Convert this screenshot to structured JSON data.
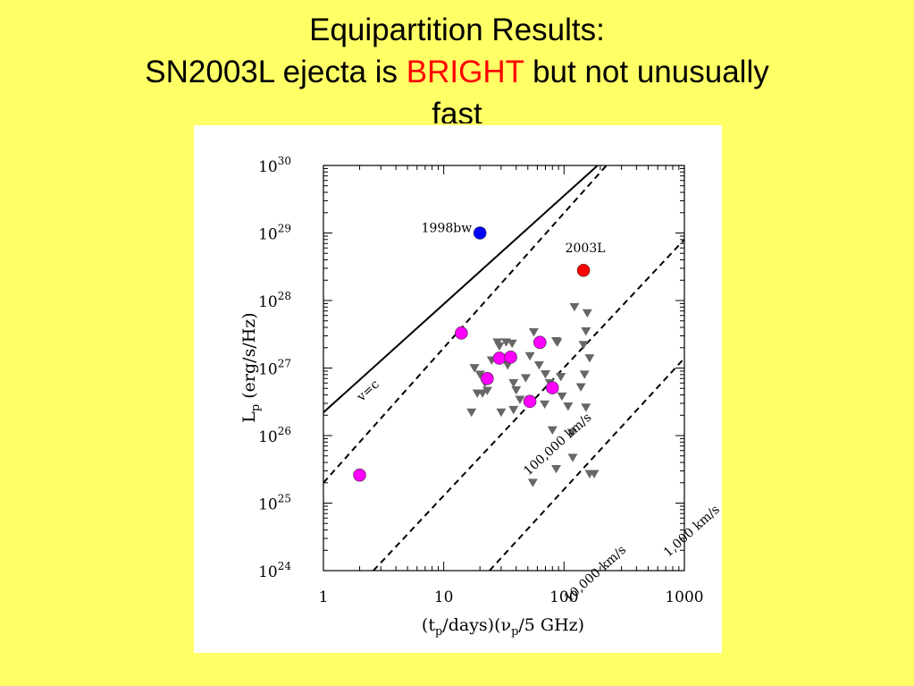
{
  "slide": {
    "title_line1": "Equipartition Results:",
    "title_line2_pre": "SN2003L ejecta is ",
    "title_line2_em": "BRIGHT",
    "title_line2_post": " but not unusually",
    "title_line3": "fast",
    "background": "#ffff66",
    "emphasis_color": "#ff0000"
  },
  "chart_data": {
    "type": "scatter",
    "x_scale": "log",
    "y_scale": "log",
    "xlim": [
      1,
      1000
    ],
    "ylim": [
      1e+24,
      1e+30
    ],
    "xlabel": {
      "main": "(t",
      "sub": "p",
      "mid": "/days)(ν",
      "sub2": "p",
      "end": "/5 GHz)"
    },
    "ylabel": {
      "main": "L",
      "sub": "p",
      "rest": "  (erg/s/Hz)"
    },
    "x_ticks": [
      {
        "value": 1,
        "label": "1"
      },
      {
        "value": 10,
        "label": "10"
      },
      {
        "value": 100,
        "label": "100"
      },
      {
        "value": 1000,
        "label": "1000"
      }
    ],
    "y_ticks": [
      {
        "exp": 24,
        "base": "10",
        "sup": "24"
      },
      {
        "exp": 25,
        "base": "10",
        "sup": "25"
      },
      {
        "exp": 26,
        "base": "10",
        "sup": "26"
      },
      {
        "exp": 27,
        "base": "10",
        "sup": "27"
      },
      {
        "exp": 28,
        "base": "10",
        "sup": "28"
      },
      {
        "exp": 29,
        "base": "10",
        "sup": "29"
      },
      {
        "exp": 30,
        "base": "10",
        "sup": "30"
      }
    ],
    "lines": [
      {
        "label": "v=c",
        "style": "solid",
        "points": [
          [
            1,
            2.2e+26
          ],
          [
            190,
            1e+30
          ]
        ]
      },
      {
        "label": "100,000 km/s",
        "style": "dashed",
        "points": [
          [
            1,
            2e+25
          ],
          [
            225,
            1e+30
          ]
        ]
      },
      {
        "label": "10,000 km/s",
        "style": "dashed",
        "points": [
          [
            2.6,
            1e+24
          ],
          [
            1000,
            8e+28
          ]
        ]
      },
      {
        "label": "1,000 km/s",
        "style": "dashed",
        "points": [
          [
            24,
            1e+24
          ],
          [
            1000,
            1.4e+27
          ]
        ]
      }
    ],
    "labeled_points": [
      {
        "label": "1998bw",
        "x": 20,
        "y": 1e+29,
        "color": "#0000ff"
      },
      {
        "label": "2003L",
        "x": 145,
        "y": 2.8e+28,
        "color": "#ff0000"
      }
    ],
    "magenta_points": {
      "color": "#ff00ff",
      "points": [
        [
          2,
          2.6e+25
        ],
        [
          14,
          3.3e+27
        ],
        [
          23,
          7e+26
        ],
        [
          29,
          1.4e+27
        ],
        [
          36,
          1.45e+27
        ],
        [
          52,
          3.2e+26
        ],
        [
          63,
          2.4e+27
        ],
        [
          80,
          5.1e+26
        ]
      ]
    },
    "upper_limits": {
      "color": "#666666",
      "points": [
        [
          18,
          1e+27
        ],
        [
          20,
          8e+26
        ],
        [
          22,
          6e+26
        ],
        [
          19,
          4.2e+26
        ],
        [
          21,
          4.2e+26
        ],
        [
          23,
          4.6e+26
        ],
        [
          17,
          2.2e+26
        ],
        [
          28,
          2.4e+27
        ],
        [
          33,
          2.4e+27
        ],
        [
          29,
          2.1e+27
        ],
        [
          25,
          1.3e+27
        ],
        [
          34,
          1.1e+27
        ],
        [
          37,
          2.3e+27
        ],
        [
          38,
          6e+26
        ],
        [
          30,
          2.2e+26
        ],
        [
          38,
          2.4e+26
        ],
        [
          43,
          3.4e+26
        ],
        [
          40,
          4.7e+26
        ],
        [
          48,
          7.1e+26
        ],
        [
          52,
          1.5e+27
        ],
        [
          56,
          3.4e+27
        ],
        [
          62,
          1.1e+27
        ],
        [
          70,
          8.1e+26
        ],
        [
          86,
          2.5e+27
        ],
        [
          76,
          6e+26
        ],
        [
          69,
          2.9e+26
        ],
        [
          88,
          2.4e+27
        ],
        [
          94,
          7.4e+26
        ],
        [
          96,
          3.8e+26
        ],
        [
          108,
          2.7e+26
        ],
        [
          116,
          1.1e+26
        ],
        [
          80,
          1.2e+26
        ],
        [
          122,
          8e+27
        ],
        [
          156,
          6.5e+27
        ],
        [
          152,
          3.5e+27
        ],
        [
          145,
          2.2e+27
        ],
        [
          163,
          1.4e+27
        ],
        [
          148,
          8e+26
        ],
        [
          138,
          5.2e+26
        ],
        [
          152,
          2.6e+26
        ],
        [
          118,
          4.7e+25
        ],
        [
          86,
          3.2e+25
        ],
        [
          55,
          2e+25
        ],
        [
          163,
          2.7e+25
        ],
        [
          178,
          2.7e+25
        ]
      ]
    }
  }
}
